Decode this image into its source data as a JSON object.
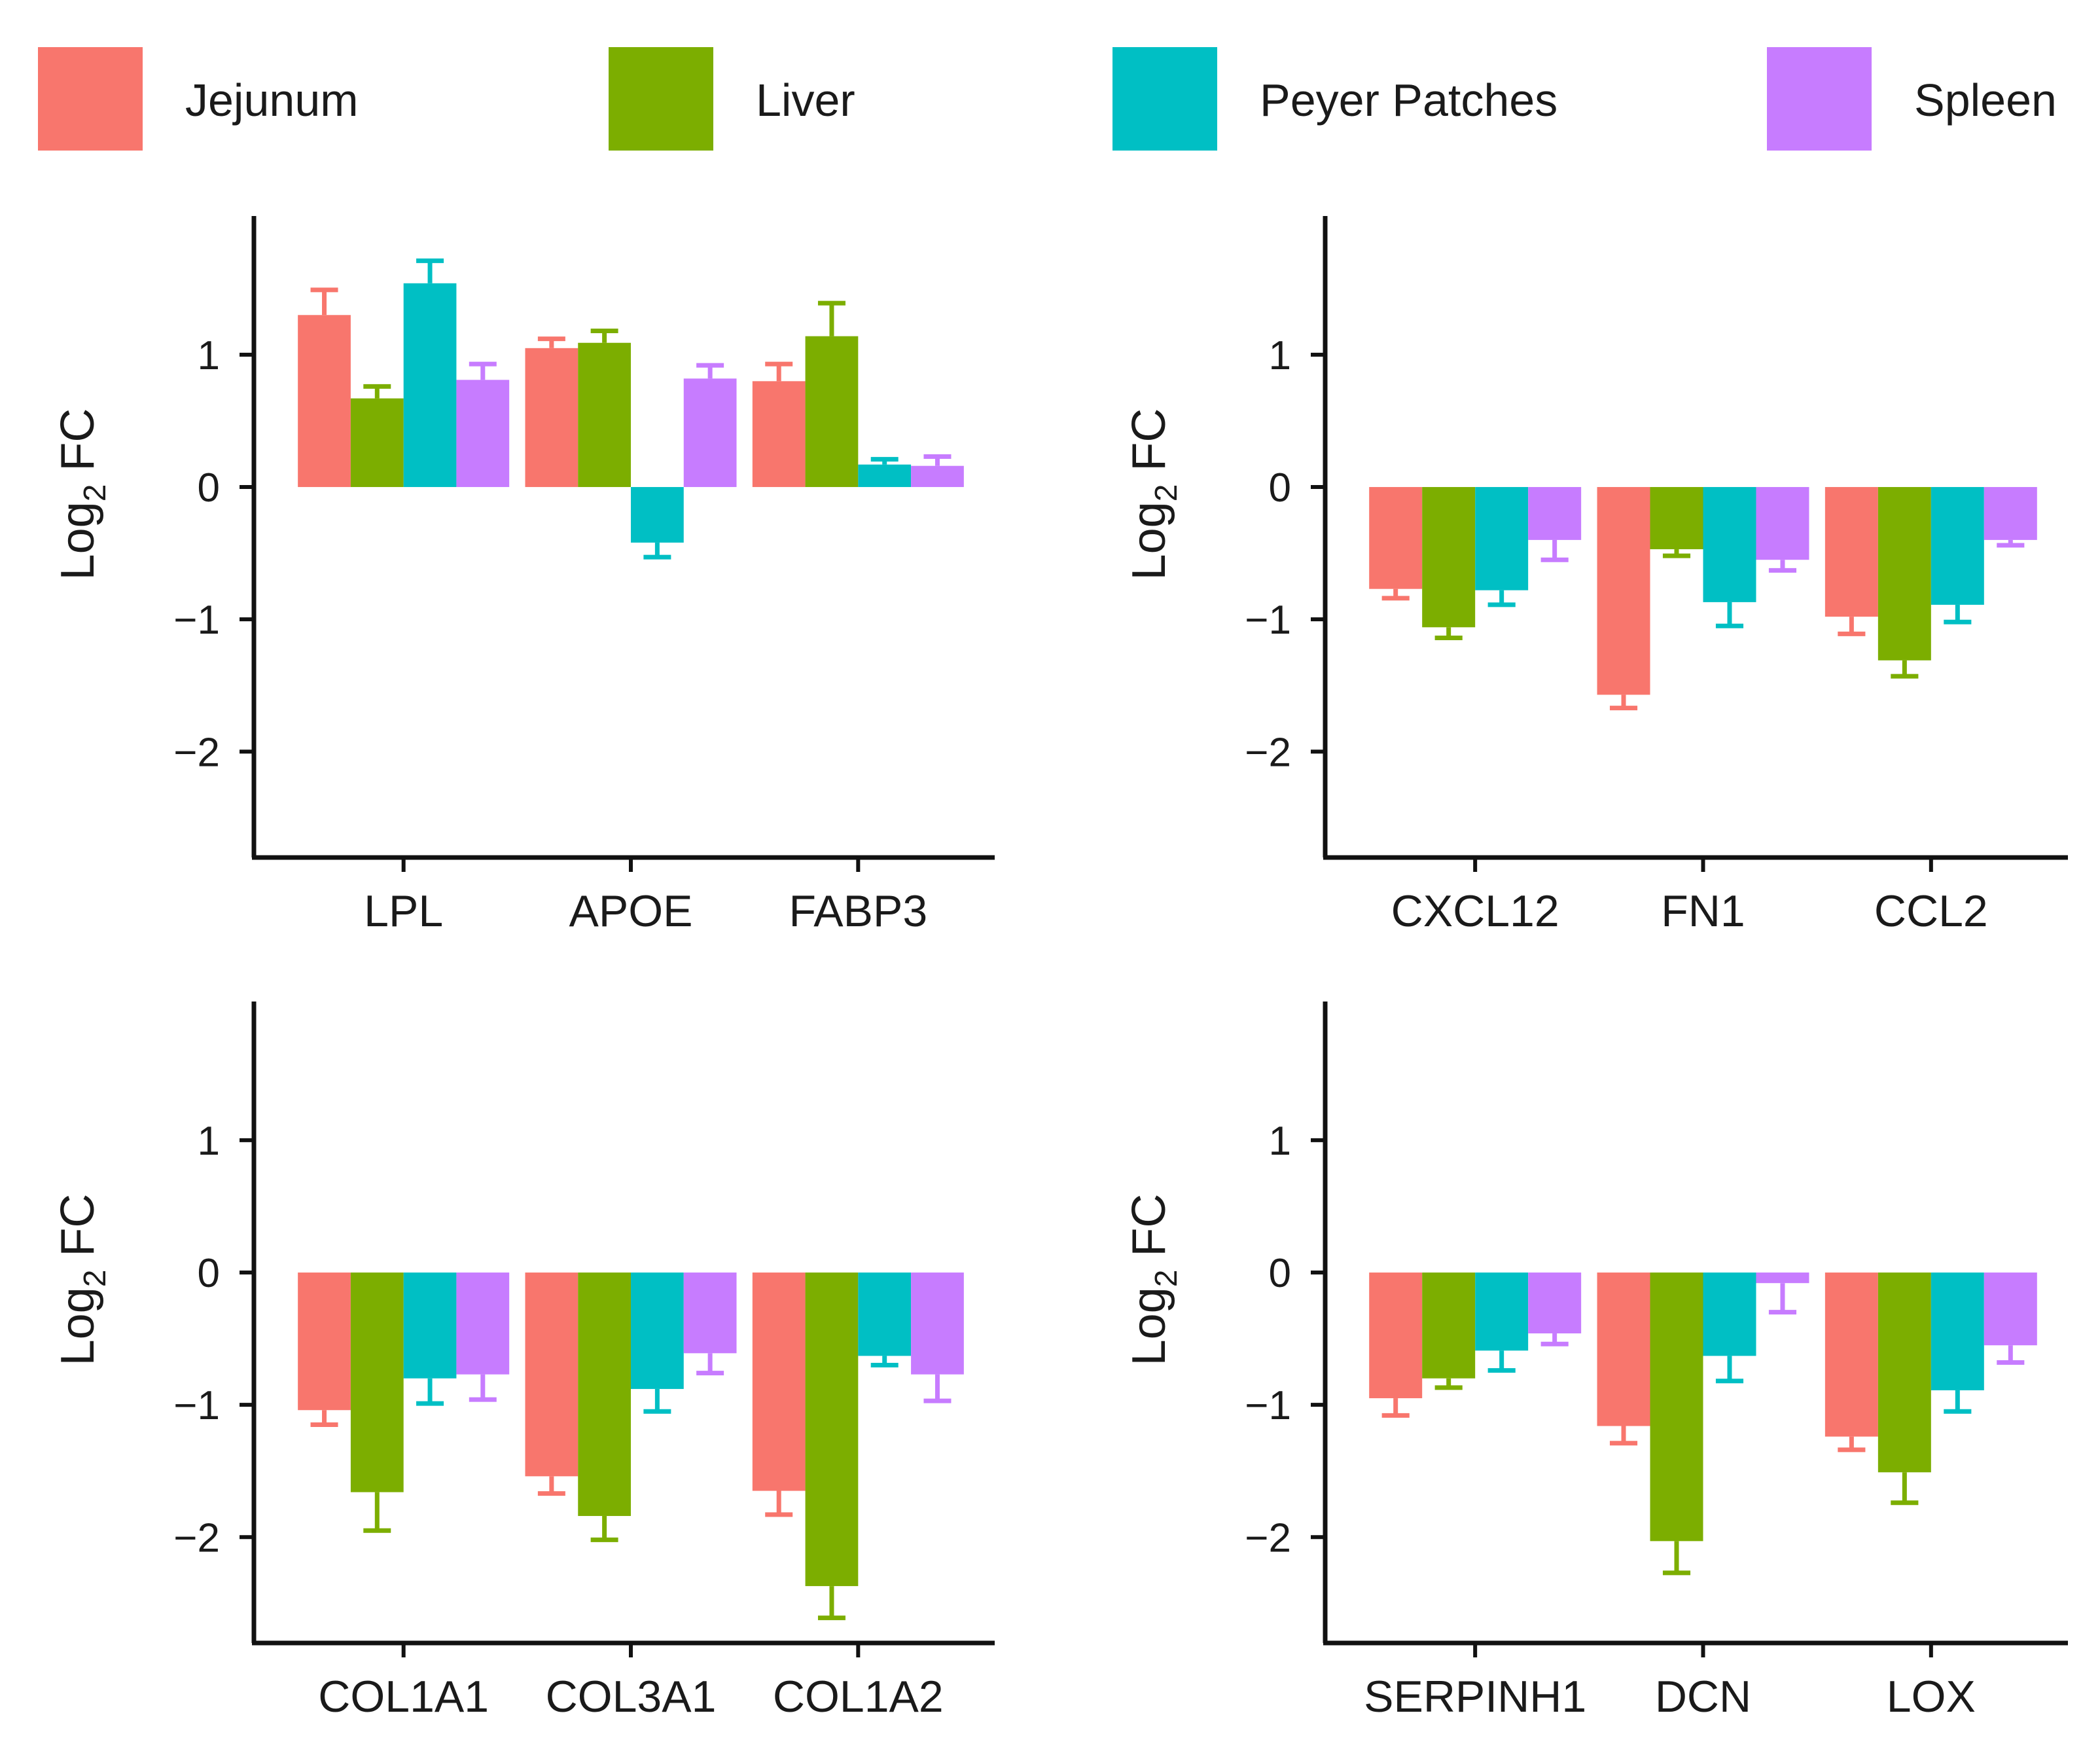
{
  "legend": {
    "position": "top",
    "entries": [
      {
        "label": "Jejunum",
        "color": "#F8766D"
      },
      {
        "label": "Liver",
        "color": "#7CAE00"
      },
      {
        "label": "Peyer Patches",
        "color": "#00BFC4"
      },
      {
        "label": "Spleen",
        "color": "#C77CFF"
      }
    ]
  },
  "chart_data": [
    {
      "type": "bar",
      "ylabel": "Log",
      "ylabel_subscript": "2",
      "ylabel_suffix": " FC",
      "ylim": [
        -2.8,
        1.9
      ],
      "yticks": [
        {
          "value": 1,
          "label": "1"
        },
        {
          "value": 0,
          "label": "0"
        },
        {
          "value": -1,
          "label": "−1"
        },
        {
          "value": -2,
          "label": "−2"
        }
      ],
      "categories": [
        "LPL",
        "APOE",
        "FABP3"
      ],
      "series": [
        {
          "name": "Jejunum",
          "values": [
            1.3,
            1.05,
            0.8
          ],
          "errors": [
            0.19,
            0.07,
            0.13
          ]
        },
        {
          "name": "Liver",
          "values": [
            0.67,
            1.09,
            1.14
          ],
          "errors": [
            0.09,
            0.09,
            0.25
          ]
        },
        {
          "name": "Peyer Patches",
          "values": [
            1.54,
            -0.42,
            0.17
          ],
          "errors": [
            0.17,
            0.11,
            0.04
          ]
        },
        {
          "name": "Spleen",
          "values": [
            0.81,
            0.82,
            0.16
          ],
          "errors": [
            0.12,
            0.1,
            0.07
          ]
        }
      ]
    },
    {
      "type": "bar",
      "ylabel": "Log",
      "ylabel_subscript": "2",
      "ylabel_suffix": " FC",
      "ylim": [
        -2.8,
        1.9
      ],
      "yticks": [
        {
          "value": 1,
          "label": "1"
        },
        {
          "value": 0,
          "label": "0"
        },
        {
          "value": -1,
          "label": "−1"
        },
        {
          "value": -2,
          "label": "−2"
        }
      ],
      "categories": [
        "CXCL12",
        "FN1",
        "CCL2"
      ],
      "series": [
        {
          "name": "Jejunum",
          "values": [
            -0.77,
            -1.57,
            -0.98
          ],
          "errors": [
            0.07,
            0.1,
            0.13
          ]
        },
        {
          "name": "Liver",
          "values": [
            -1.06,
            -0.47,
            -1.31
          ],
          "errors": [
            0.08,
            0.05,
            0.12
          ]
        },
        {
          "name": "Peyer Patches",
          "values": [
            -0.78,
            -0.87,
            -0.89
          ],
          "errors": [
            0.11,
            0.18,
            0.13
          ]
        },
        {
          "name": "Spleen",
          "values": [
            -0.4,
            -0.55,
            -0.4
          ],
          "errors": [
            0.15,
            0.08,
            0.04
          ]
        }
      ]
    },
    {
      "type": "bar",
      "ylabel": "Log",
      "ylabel_subscript": "2",
      "ylabel_suffix": " FC",
      "ylim": [
        -2.8,
        1.9
      ],
      "yticks": [
        {
          "value": 1,
          "label": "1"
        },
        {
          "value": 0,
          "label": "0"
        },
        {
          "value": -1,
          "label": "−1"
        },
        {
          "value": -2,
          "label": "−2"
        }
      ],
      "categories": [
        "COL1A1",
        "COL3A1",
        "COL1A2"
      ],
      "series": [
        {
          "name": "Jejunum",
          "values": [
            -1.04,
            -1.54,
            -1.65
          ],
          "errors": [
            0.11,
            0.13,
            0.18
          ]
        },
        {
          "name": "Liver",
          "values": [
            -1.66,
            -1.84,
            -2.37
          ],
          "errors": [
            0.29,
            0.18,
            0.24
          ]
        },
        {
          "name": "Peyer Patches",
          "values": [
            -0.8,
            -0.88,
            -0.63
          ],
          "errors": [
            0.19,
            0.17,
            0.07
          ]
        },
        {
          "name": "Spleen",
          "values": [
            -0.77,
            -0.61,
            -0.77
          ],
          "errors": [
            0.19,
            0.15,
            0.2
          ]
        }
      ]
    },
    {
      "type": "bar",
      "ylabel": "Log",
      "ylabel_subscript": "2",
      "ylabel_suffix": " FC",
      "ylim": [
        -2.8,
        1.9
      ],
      "yticks": [
        {
          "value": 1,
          "label": "1"
        },
        {
          "value": 0,
          "label": "0"
        },
        {
          "value": -1,
          "label": "−1"
        },
        {
          "value": -2,
          "label": "−2"
        }
      ],
      "categories": [
        "SERPINH1",
        "DCN",
        "LOX"
      ],
      "series": [
        {
          "name": "Jejunum",
          "values": [
            -0.95,
            -1.16,
            -1.24
          ],
          "errors": [
            0.13,
            0.13,
            0.1
          ]
        },
        {
          "name": "Liver",
          "values": [
            -0.8,
            -2.03,
            -1.51
          ],
          "errors": [
            0.07,
            0.24,
            0.23
          ]
        },
        {
          "name": "Peyer Patches",
          "values": [
            -0.59,
            -0.63,
            -0.89
          ],
          "errors": [
            0.15,
            0.19,
            0.16
          ]
        },
        {
          "name": "Spleen",
          "values": [
            -0.46,
            -0.08,
            -0.55
          ],
          "errors": [
            0.08,
            0.22,
            0.13
          ]
        }
      ]
    }
  ]
}
